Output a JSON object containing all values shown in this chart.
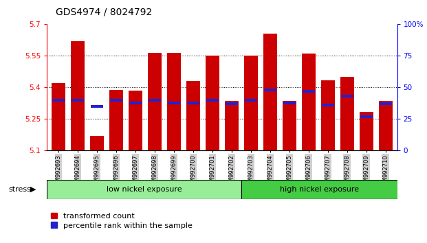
{
  "title": "GDS4974 / 8024792",
  "samples": [
    "GSM992693",
    "GSM992694",
    "GSM992695",
    "GSM992696",
    "GSM992697",
    "GSM992698",
    "GSM992699",
    "GSM992700",
    "GSM992701",
    "GSM992702",
    "GSM992703",
    "GSM992704",
    "GSM992705",
    "GSM992706",
    "GSM992707",
    "GSM992708",
    "GSM992709",
    "GSM992710"
  ],
  "transformed_counts": [
    5.42,
    5.62,
    5.17,
    5.39,
    5.385,
    5.565,
    5.565,
    5.43,
    5.55,
    5.335,
    5.55,
    5.655,
    5.335,
    5.56,
    5.435,
    5.45,
    5.285,
    5.335
  ],
  "percentile_ranks": [
    40,
    40,
    35,
    40,
    38,
    40,
    38,
    38,
    40,
    37,
    40,
    48,
    38,
    47,
    36,
    43,
    27,
    37
  ],
  "ymin": 5.1,
  "ymax": 5.7,
  "yticks": [
    5.1,
    5.25,
    5.4,
    5.55,
    5.7
  ],
  "ytick_labels": [
    "5.1",
    "5.25",
    "5.4",
    "5.55",
    "5.7"
  ],
  "right_yticks": [
    0,
    25,
    50,
    75,
    100
  ],
  "right_ylabels": [
    "0",
    "25",
    "50",
    "75",
    "100%"
  ],
  "bar_color": "#cc0000",
  "percentile_color": "#2222cc",
  "bar_width": 0.7,
  "low_nickel_count": 10,
  "high_nickel_count": 8,
  "group_label_low": "low nickel exposure",
  "group_label_high": "high nickel exposure",
  "stress_label": "stress",
  "legend_labels": [
    "transformed count",
    "percentile rank within the sample"
  ],
  "bg_xticklabels": "#d0d0d0",
  "green_low": "#98ee98",
  "green_high": "#44cc44",
  "grid_lines": [
    5.25,
    5.4,
    5.55
  ]
}
